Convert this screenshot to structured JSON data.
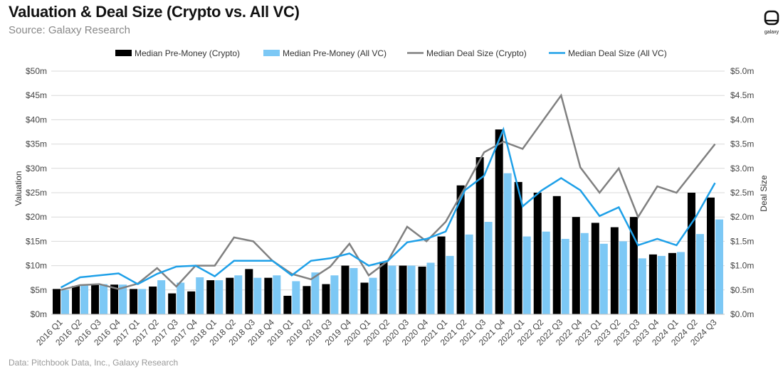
{
  "header": {
    "title": "Valuation & Deal Size (Crypto vs. All VC)",
    "subtitle": "Source: Galaxy Research",
    "logo_text": "galaxy"
  },
  "footer": {
    "note": "Data: Pitchbook Data, Inc., Galaxy Research"
  },
  "colors": {
    "crypto_bar": "#000000",
    "allvc_bar": "#7cc8f5",
    "crypto_line": "#808080",
    "allvc_line": "#1ea0e8",
    "grid": "#d9d9d9"
  },
  "chart_data": {
    "type": "bar",
    "title": "Valuation & Deal Size (Crypto vs. All VC)",
    "ylabel": "Valuation",
    "y2label": "Deal Size",
    "ylim": [
      0,
      50
    ],
    "y2lim": [
      0,
      5
    ],
    "yticks": [
      "$0m",
      "$5m",
      "$10m",
      "$15m",
      "$20m",
      "$25m",
      "$30m",
      "$35m",
      "$40m",
      "$45m",
      "$50m"
    ],
    "y2ticks": [
      "$0.0m",
      "$0.5m",
      "$1.0m",
      "$1.5m",
      "$2.0m",
      "$2.5m",
      "$3.0m",
      "$3.5m",
      "$4.0m",
      "$4.5m",
      "$5.0m"
    ],
    "legend_position": "top-center",
    "categories": [
      "2016 Q1",
      "2016 Q2",
      "2016 Q3",
      "2016 Q4",
      "2017 Q1",
      "2017 Q2",
      "2017 Q3",
      "2017 Q4",
      "2018 Q1",
      "2018 Q2",
      "2018 Q3",
      "2018 Q4",
      "2019 Q1",
      "2019 Q2",
      "2019 Q3",
      "2019 Q4",
      "2020 Q1",
      "2020 Q2",
      "2020 Q3",
      "2020 Q4",
      "2021 Q1",
      "2021 Q2",
      "2021 Q3",
      "2021 Q4",
      "2022 Q1",
      "2022 Q2",
      "2022 Q3",
      "2022 Q4",
      "2023 Q1",
      "2023 Q2",
      "2023 Q3",
      "2023 Q4",
      "2024 Q1",
      "2024 Q2",
      "2024 Q3"
    ],
    "series": [
      {
        "name": "Median Pre-Money (Crypto)",
        "kind": "bar",
        "axis": "left",
        "values": [
          5.2,
          5.8,
          6.0,
          6.1,
          5.2,
          5.7,
          4.3,
          4.7,
          7.0,
          7.5,
          9.3,
          7.5,
          3.8,
          5.8,
          6.2,
          10.0,
          6.5,
          10.8,
          10.0,
          9.8,
          16.0,
          26.5,
          32.3,
          38.0,
          27.2,
          25.0,
          24.3,
          20.0,
          18.8,
          17.9,
          20.0,
          12.3,
          12.6,
          25.0,
          24.0
        ]
      },
      {
        "name": "Median Pre-Money (All VC)",
        "kind": "bar",
        "axis": "left",
        "values": [
          5.0,
          6.0,
          6.2,
          6.1,
          5.2,
          7.0,
          6.5,
          7.6,
          7.0,
          8.0,
          7.5,
          8.0,
          6.8,
          8.6,
          8.0,
          9.5,
          7.5,
          10.0,
          10.0,
          10.6,
          12.0,
          16.4,
          19.0,
          29.0,
          16.0,
          17.0,
          15.5,
          16.7,
          14.5,
          15.0,
          11.5,
          12.0,
          12.8,
          16.5,
          19.5
        ]
      },
      {
        "name": "Median Deal Size (Crypto)",
        "kind": "line",
        "axis": "right",
        "values": [
          0.5,
          0.6,
          0.62,
          0.52,
          0.63,
          0.95,
          0.57,
          1.0,
          1.0,
          1.58,
          1.5,
          1.1,
          0.83,
          0.72,
          0.98,
          1.45,
          0.8,
          1.1,
          1.8,
          1.5,
          1.9,
          2.6,
          3.33,
          3.55,
          3.4,
          3.95,
          4.5,
          3.02,
          2.5,
          3.0,
          2.0,
          2.63,
          2.5,
          3.0,
          3.5
        ]
      },
      {
        "name": "Median Deal Size (All VC)",
        "kind": "line",
        "axis": "right",
        "values": [
          0.55,
          0.76,
          0.8,
          0.84,
          0.62,
          0.83,
          0.98,
          1.0,
          0.78,
          1.1,
          1.1,
          1.1,
          0.8,
          1.1,
          1.15,
          1.25,
          1.0,
          1.1,
          1.48,
          1.55,
          1.7,
          2.55,
          2.85,
          3.8,
          2.22,
          2.55,
          2.8,
          2.55,
          2.02,
          2.2,
          1.42,
          1.55,
          1.42,
          2.0,
          2.7
        ]
      }
    ]
  }
}
